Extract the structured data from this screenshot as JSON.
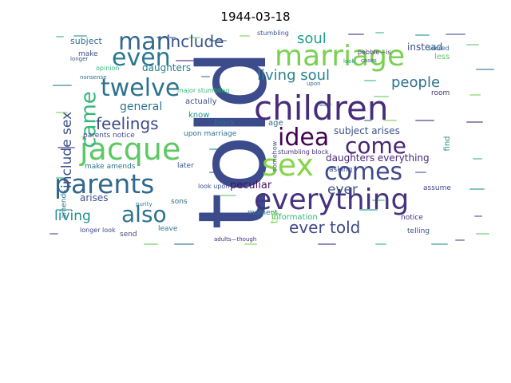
{
  "chart_data": {
    "type": "wordcloud",
    "title": "1944-03-18",
    "colormap": "viridis",
    "background": "#ffffff",
    "words": [
      {
        "text": "told",
        "weight": 100,
        "color": "#3b4b8c",
        "rotate": true
      },
      {
        "text": "children",
        "weight": 64,
        "color": "#472c7a"
      },
      {
        "text": "jacque",
        "weight": 54,
        "color": "#5cc863"
      },
      {
        "text": "everything",
        "weight": 52,
        "color": "#46337e"
      },
      {
        "text": "marriage",
        "weight": 50,
        "color": "#7ad151"
      },
      {
        "text": "sex",
        "weight": 48,
        "color": "#86d549"
      },
      {
        "text": "parents",
        "weight": 46,
        "color": "#31688e"
      },
      {
        "text": "comes",
        "weight": 42,
        "color": "#3e4989"
      },
      {
        "text": "man",
        "weight": 40,
        "color": "#31688e"
      },
      {
        "text": "even",
        "weight": 40,
        "color": "#2a788e"
      },
      {
        "text": "twelve",
        "weight": 38,
        "color": "#2c728e"
      },
      {
        "text": "idea",
        "weight": 36,
        "color": "#440154"
      },
      {
        "text": "come",
        "weight": 36,
        "color": "#482475"
      },
      {
        "text": "also",
        "weight": 34,
        "color": "#2c728e"
      },
      {
        "text": "came",
        "weight": 34,
        "color": "#35b779",
        "rotate": true
      },
      {
        "text": "feelings",
        "weight": 26,
        "color": "#3e4989"
      },
      {
        "text": "include",
        "weight": 26,
        "color": "#3b528b"
      },
      {
        "text": "ever told",
        "weight": 26,
        "color": "#3e4989"
      },
      {
        "text": "living soul",
        "weight": 24,
        "color": "#26828e"
      },
      {
        "text": "include sex",
        "weight": 24,
        "color": "#3b528b",
        "rotate": true
      },
      {
        "text": "soul",
        "weight": 22,
        "color": "#1fa088"
      },
      {
        "text": "people",
        "weight": 22,
        "color": "#2c728e"
      },
      {
        "text": "living",
        "weight": 20,
        "color": "#21918c"
      },
      {
        "text": "ever",
        "weight": 20,
        "color": "#3b528b"
      },
      {
        "text": "general",
        "weight": 18,
        "color": "#2c728e"
      },
      {
        "text": "peculiar",
        "weight": 16,
        "color": "#471063"
      },
      {
        "text": "daughters everything",
        "weight": 12,
        "color": "#482878"
      },
      {
        "text": "subject arises",
        "weight": 12,
        "color": "#3b528b"
      },
      {
        "text": "stumbling block",
        "weight": 10,
        "color": "#46337e"
      },
      {
        "text": "instead",
        "weight": 12,
        "color": "#3b528b"
      },
      {
        "text": "subject",
        "weight": 12,
        "color": "#2c728e"
      },
      {
        "text": "daughters",
        "weight": 12,
        "color": "#287c8e"
      },
      {
        "text": "make amends",
        "weight": 10,
        "color": "#2c728e"
      },
      {
        "text": "arises",
        "weight": 12,
        "color": "#3b528b"
      },
      {
        "text": "actually",
        "weight": 10,
        "color": "#3b528b"
      },
      {
        "text": "major stumbling",
        "weight": 10,
        "color": "#35b779"
      },
      {
        "text": "information",
        "weight": 10,
        "color": "#35b779"
      },
      {
        "text": "moment",
        "weight": 10,
        "color": "#2a788e"
      },
      {
        "text": "telling",
        "weight": 10,
        "color": "#3b528b"
      },
      {
        "text": "notice",
        "weight": 10,
        "color": "#472d7b"
      },
      {
        "text": "assume",
        "weight": 10,
        "color": "#3e4989"
      },
      {
        "text": "asking",
        "weight": 10,
        "color": "#3e4989"
      },
      {
        "text": "room",
        "weight": 10,
        "color": "#46337e"
      },
      {
        "text": "less",
        "weight": 10,
        "color": "#5cc863"
      },
      {
        "text": "sacred",
        "weight": 8,
        "color": "#2c728e"
      },
      {
        "text": "know",
        "weight": 10,
        "color": "#21918c"
      },
      {
        "text": "try",
        "weight": 12,
        "color": "#7ad151",
        "rotate": true
      },
      {
        "text": "age",
        "weight": 10,
        "color": "#2c728e"
      },
      {
        "text": "sure",
        "weight": 8,
        "color": "#3b528b"
      },
      {
        "text": "find",
        "weight": 10,
        "color": "#21918c",
        "rotate": true
      },
      {
        "text": "amends",
        "weight": 10,
        "color": "#2c728e",
        "rotate": true
      },
      {
        "text": "block",
        "weight": 10,
        "color": "#2c728e"
      },
      {
        "text": "make",
        "weight": 10,
        "color": "#3b528b"
      },
      {
        "text": "upon marriage",
        "weight": 10,
        "color": "#2c728e"
      },
      {
        "text": "look upon",
        "weight": 10,
        "color": "#3b528b"
      },
      {
        "text": "send",
        "weight": 10,
        "color": "#3e4989"
      },
      {
        "text": "leave",
        "weight": 10,
        "color": "#2a788e"
      },
      {
        "text": "sons",
        "weight": 10,
        "color": "#2c728e"
      },
      {
        "text": "later",
        "weight": 10,
        "color": "#3b528b"
      },
      {
        "text": "longer look",
        "weight": 8,
        "color": "#3e4989"
      },
      {
        "text": "purity",
        "weight": 8,
        "color": "#2a788e"
      },
      {
        "text": "parents notice",
        "weight": 8,
        "color": "#3e4989"
      },
      {
        "text": "opinion",
        "weight": 8,
        "color": "#35b779"
      },
      {
        "text": "nonsense",
        "weight": 8,
        "color": "#2c728e"
      },
      {
        "text": "longer",
        "weight": 8,
        "color": "#3b528b"
      },
      {
        "text": "adults—though",
        "weight": 8,
        "color": "#482878"
      },
      {
        "text": "somehow",
        "weight": 8,
        "color": "#3b528b",
        "rotate": true
      },
      {
        "text": "pebble—is",
        "weight": 8,
        "color": "#46337e"
      },
      {
        "text": "stumbling",
        "weight": 8,
        "color": "#3b528b"
      },
      {
        "text": "upon",
        "weight": 8,
        "color": "#2c728e"
      },
      {
        "text": "look",
        "weight": 8,
        "color": "#21918c"
      },
      {
        "text": "cases",
        "weight": 8,
        "color": "#3b528b"
      }
    ]
  }
}
